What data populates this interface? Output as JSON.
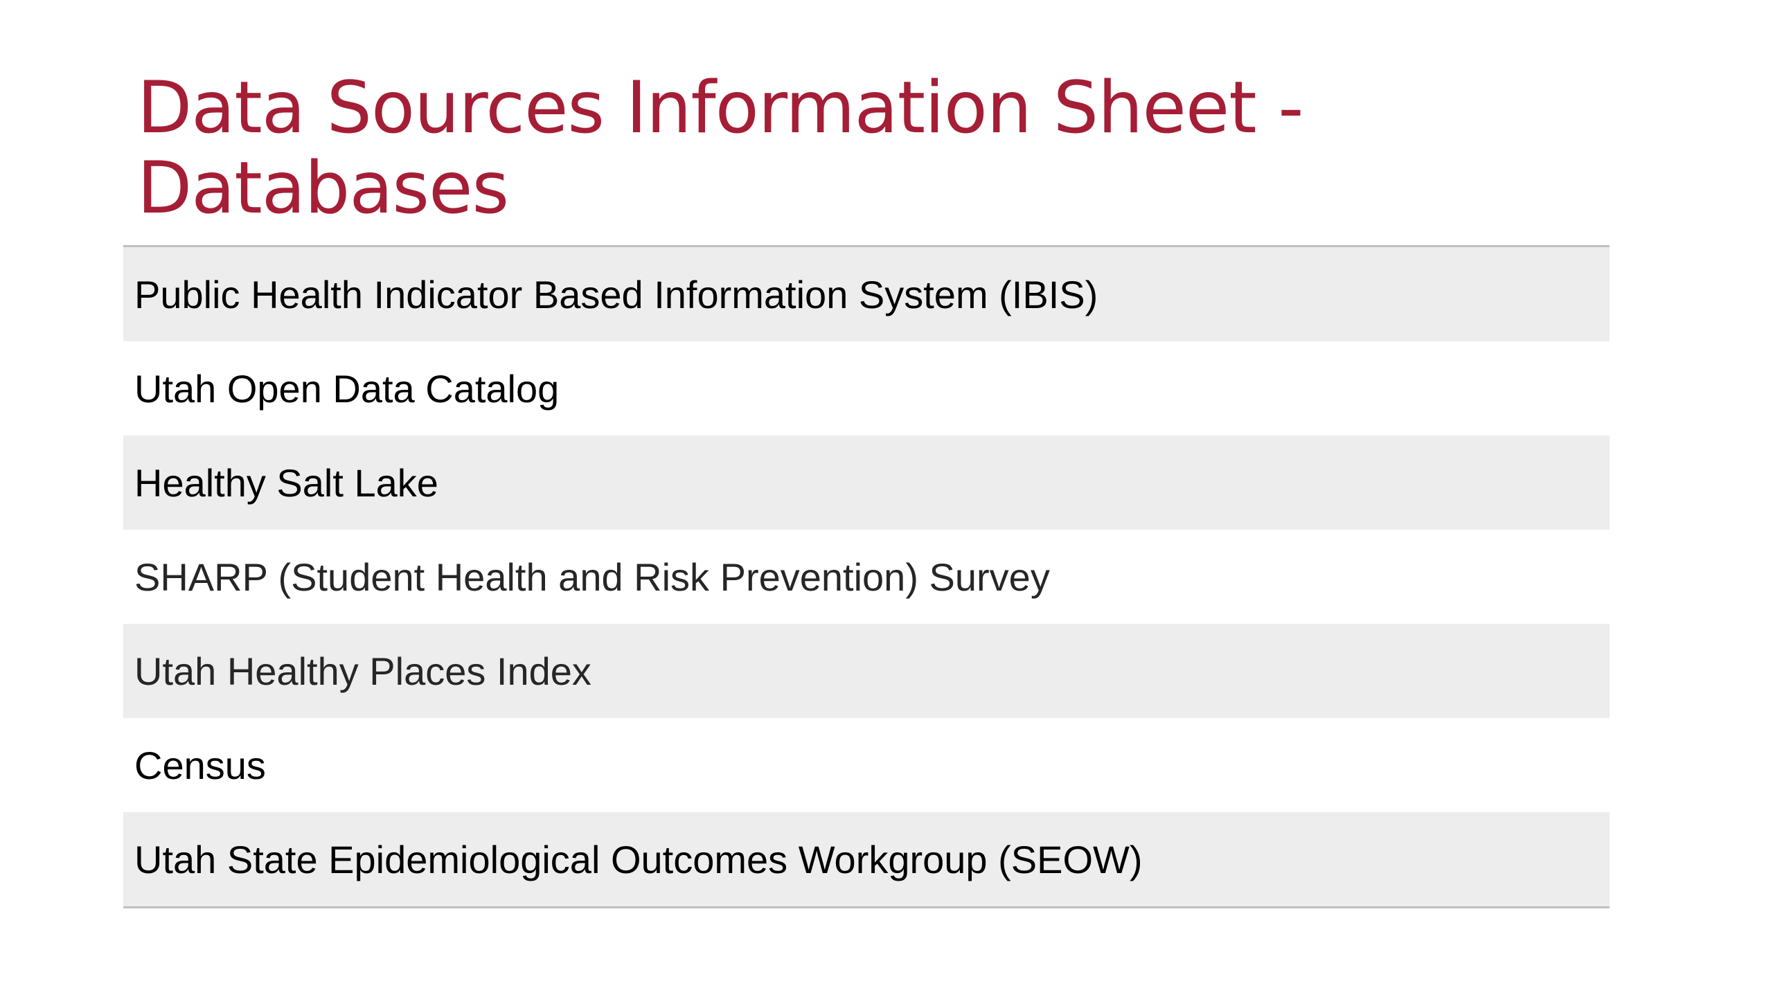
{
  "slide": {
    "title": "Data Sources Information Sheet - Databases",
    "title_color": "#A51E36",
    "rows": [
      {
        "label": "Public Health Indicator Based Information System (IBIS)",
        "shaded": true
      },
      {
        "label": "Utah Open Data Catalog",
        "shaded": false
      },
      {
        "label": "Healthy Salt Lake",
        "shaded": true
      },
      {
        "label": "SHARP (Student Health and Risk Prevention) Survey",
        "shaded": false
      },
      {
        "label": "Utah Healthy Places Index",
        "shaded": true
      },
      {
        "label": "Census",
        "shaded": false
      },
      {
        "label": "Utah State Epidemiological Outcomes Workgroup (SEOW)",
        "shaded": true
      }
    ],
    "shade_color": "#EDEDED",
    "rule_color": "#BFBFBF"
  }
}
